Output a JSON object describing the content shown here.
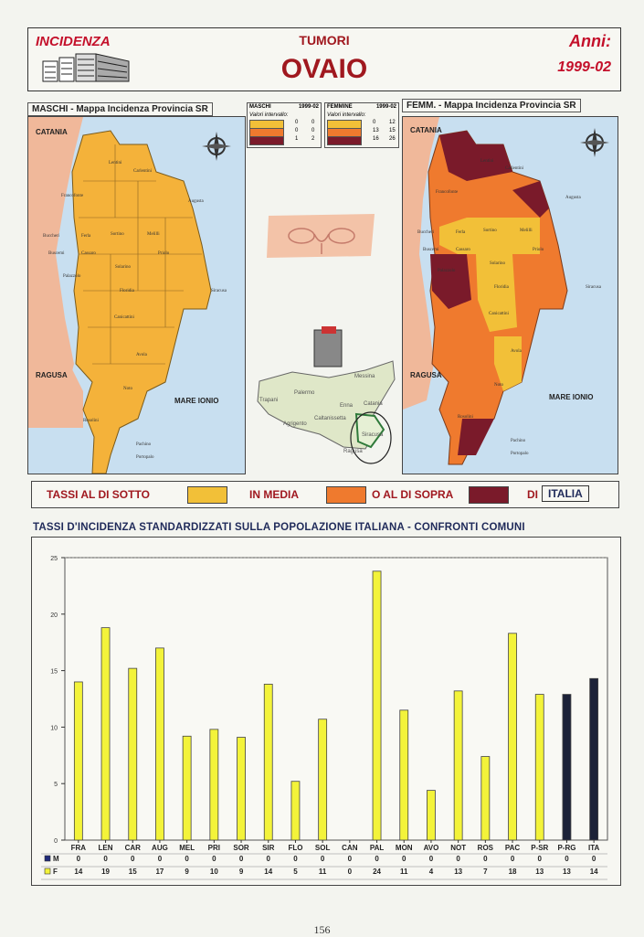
{
  "header": {
    "incidenza": "INCIDENZA",
    "tumori": "TUMORI",
    "title": "OVAIO",
    "anni_label": "Anni:",
    "anni_value": "1999-02"
  },
  "maps": {
    "male_title": "MASCHI - Mappa Incidenza Provincia SR",
    "female_title": "FEMM. - Mappa Incidenza Provincia SR",
    "catania": "CATANIA",
    "ragusa": "RAGUSA",
    "mare": "MARE IONIO",
    "communes": [
      "Lentini",
      "Carlentini",
      "Francofonte",
      "Augusta",
      "Buccheri",
      "Ferla",
      "Sortino",
      "Melilli",
      "Buscemi",
      "Cassaro",
      "Priolo",
      "Palazzolo",
      "Solarino",
      "Floridia",
      "Siracusa",
      "Canicattini",
      "Avola",
      "Noto",
      "Rosolini",
      "Pachino",
      "Portopalo"
    ],
    "compass": [
      "N",
      "S",
      "O",
      "E"
    ]
  },
  "legend_boxes": {
    "male_header": "MASCHI",
    "male_years": "1999-02",
    "female_header": "FEMMINE",
    "female_years": "1999-02",
    "valori": "Valori intervallo:",
    "male_rows": [
      [
        "0",
        "0"
      ],
      [
        "0",
        "0"
      ],
      [
        "1",
        "2"
      ]
    ],
    "female_rows": [
      [
        "0",
        "12"
      ],
      [
        "13",
        "15"
      ],
      [
        "16",
        "26"
      ]
    ]
  },
  "sicily": {
    "cities": [
      "Messina",
      "Palermo",
      "Trapani",
      "Enna",
      "Catania",
      "Agrigento",
      "Caltanissetta",
      "Siracusa",
      "Ragusa"
    ]
  },
  "legend": {
    "t1": "TASSI AL DI SOTTO",
    "t2": "IN MEDIA",
    "t3": "O AL DI SOPRA",
    "t4": "DI",
    "t5": "ITALIA",
    "colors": [
      "#f2c038",
      "#ef7a2e",
      "#7a1a2a"
    ]
  },
  "chart_title": "TASSI D'INCIDENZA STANDARDIZZATI SULLA POPOLAZIONE ITALIANA - CONFRONTI COMUNI",
  "chart_data": {
    "type": "bar",
    "categories": [
      "FRA",
      "LEN",
      "CAR",
      "AUG",
      "MEL",
      "PRI",
      "SOR",
      "SIR",
      "FLO",
      "SOL",
      "CAN",
      "PAL",
      "MON",
      "AVO",
      "NOT",
      "ROS",
      "PAC",
      "P-SR",
      "P-RG",
      "ITA"
    ],
    "series": [
      {
        "name": "M",
        "values": [
          0,
          0,
          0,
          0,
          0,
          0,
          0,
          0,
          0,
          0,
          0,
          0,
          0,
          0,
          0,
          0,
          0,
          0,
          0,
          0
        ],
        "color": "#1f2a7a"
      },
      {
        "name": "F",
        "values": [
          14,
          18.8,
          15.2,
          17,
          9.2,
          9.8,
          9.1,
          13.8,
          5.2,
          10.7,
          0,
          23.8,
          11.5,
          4.4,
          13.2,
          7.4,
          18.3,
          12.9,
          12.9,
          14.3
        ],
        "color": "#f3f33a"
      }
    ],
    "table_rows": [
      {
        "name": "M",
        "values": [
          "0",
          "0",
          "0",
          "0",
          "0",
          "0",
          "0",
          "0",
          "0",
          "0",
          "0",
          "0",
          "0",
          "0",
          "0",
          "0",
          "0",
          "0",
          "0",
          "0"
        ]
      },
      {
        "name": "F",
        "values": [
          "14",
          "19",
          "15",
          "17",
          "9",
          "10",
          "9",
          "14",
          "5",
          "11",
          "0",
          "24",
          "11",
          "4",
          "13",
          "7",
          "18",
          "13",
          "13",
          "14"
        ]
      }
    ],
    "dark_categories": [
      "P-RG",
      "ITA"
    ],
    "dark_color": "#1c2238",
    "ylim": [
      0,
      25
    ],
    "yticks": [
      0,
      5,
      10,
      15,
      20,
      25
    ],
    "grid": false
  },
  "page_number": "156"
}
